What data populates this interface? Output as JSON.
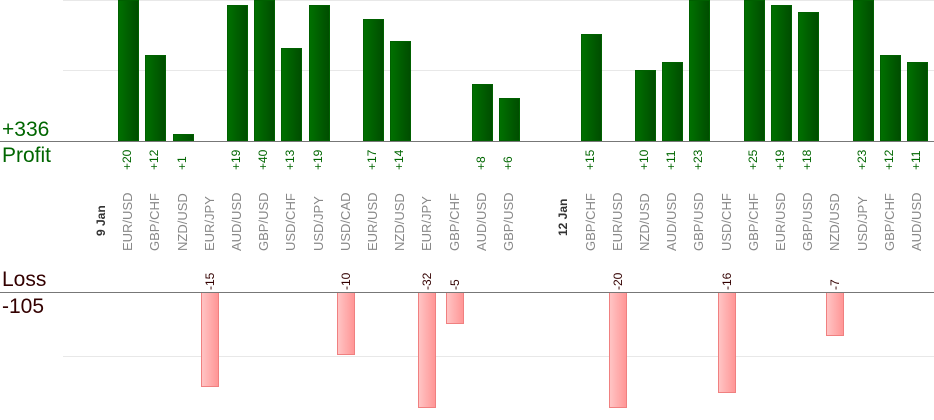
{
  "chart_data": {
    "type": "bar",
    "title": "",
    "summary": {
      "profit_total": "+336",
      "profit_label": "Profit",
      "loss_label": "Loss",
      "loss_total": "-105"
    },
    "colors": {
      "profit": "#006600",
      "loss": "#ff9999",
      "profit_text": "#006600",
      "loss_text": "#330000"
    },
    "dates": [
      {
        "col": 0,
        "label": "9 Jan"
      },
      {
        "col": 17,
        "label": "12 Jan"
      }
    ],
    "columns": [
      {
        "col": 1,
        "pair": "EUR/USD",
        "value": 20
      },
      {
        "col": 2,
        "pair": "GBP/CHF",
        "value": 12
      },
      {
        "col": 3,
        "pair": "NZD/USD",
        "value": 1
      },
      {
        "col": 4,
        "pair": "EUR/JPY",
        "value": -15
      },
      {
        "col": 5,
        "pair": "AUD/USD",
        "value": 19
      },
      {
        "col": 6,
        "pair": "GBP/USD",
        "value": 40
      },
      {
        "col": 7,
        "pair": "USD/CHF",
        "value": 13
      },
      {
        "col": 8,
        "pair": "USD/JPY",
        "value": 19
      },
      {
        "col": 9,
        "pair": "USD/CAD",
        "value": -10
      },
      {
        "col": 10,
        "pair": "EUR/USD",
        "value": 17
      },
      {
        "col": 11,
        "pair": "NZD/USD",
        "value": 14
      },
      {
        "col": 12,
        "pair": "EUR/JPY",
        "value": -32
      },
      {
        "col": 13,
        "pair": "GBP/CHF",
        "value": -5
      },
      {
        "col": 14,
        "pair": "AUD/USD",
        "value": 8
      },
      {
        "col": 15,
        "pair": "GBP/USD",
        "value": 6
      },
      {
        "col": 18,
        "pair": "GBP/CHF",
        "value": 15
      },
      {
        "col": 19,
        "pair": "EUR/USD",
        "value": -20
      },
      {
        "col": 20,
        "pair": "NZD/USD",
        "value": 10
      },
      {
        "col": 21,
        "pair": "AUD/USD",
        "value": 11
      },
      {
        "col": 22,
        "pair": "GBP/USD",
        "value": 23
      },
      {
        "col": 23,
        "pair": "USD/CHF",
        "value": -16
      },
      {
        "col": 24,
        "pair": "GBP/CHF",
        "value": 25
      },
      {
        "col": 25,
        "pair": "EUR/USD",
        "value": 19
      },
      {
        "col": 26,
        "pair": "GBP/USD",
        "value": 18
      },
      {
        "col": 27,
        "pair": "NZD/USD",
        "value": -7
      },
      {
        "col": 28,
        "pair": "USD/JPY",
        "value": 23
      },
      {
        "col": 29,
        "pair": "GBP/CHF",
        "value": 12
      },
      {
        "col": 30,
        "pair": "AUD/USD",
        "value": 11
      }
    ]
  }
}
